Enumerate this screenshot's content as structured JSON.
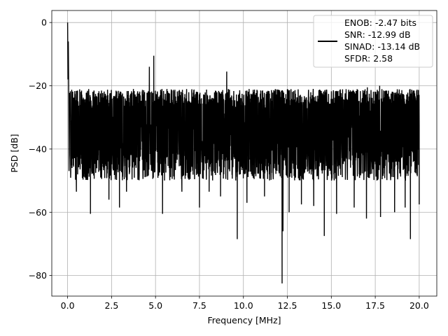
{
  "chart_data": {
    "type": "line",
    "xlabel": "Frequency [MHz]",
    "ylabel": "PSD [dB]",
    "xlim": [
      -0.9,
      21.0
    ],
    "ylim": [
      -86.5,
      3.8
    ],
    "xticks": [
      0.0,
      2.5,
      5.0,
      7.5,
      10.0,
      12.5,
      15.0,
      17.5,
      20.0
    ],
    "xtick_labels": [
      "0.0",
      "2.5",
      "5.0",
      "7.5",
      "10.0",
      "12.5",
      "15.0",
      "17.5",
      "20.0"
    ],
    "yticks": [
      0,
      -20,
      -40,
      -60,
      -80
    ],
    "ytick_labels": [
      "0",
      "−20",
      "−40",
      "−60",
      "−80"
    ],
    "grid": true,
    "legend_position": "top-right",
    "series": [
      {
        "legend_lines": [
          "ENOB: -2.47 bits",
          "SNR: -12.99 dB",
          "SINAD: -13.14 dB",
          "SFDR: 2.58"
        ],
        "color": "#000000",
        "noise_floor_band": [
          -45,
          -24
        ],
        "points": [
          {
            "x": 0.0,
            "y": 0.0
          },
          {
            "x": 0.02,
            "y": -18.0
          },
          {
            "x": 0.04,
            "y": -6.0
          },
          {
            "x": 0.06,
            "y": -20.0
          },
          {
            "x": 0.5,
            "y": -53.5
          },
          {
            "x": 1.3,
            "y": -60.5
          },
          {
            "x": 1.6,
            "y": -46.5
          },
          {
            "x": 2.35,
            "y": -56.0
          },
          {
            "x": 2.95,
            "y": -58.5
          },
          {
            "x": 3.35,
            "y": -53.5
          },
          {
            "x": 4.65,
            "y": -14.0
          },
          {
            "x": 4.9,
            "y": -10.5
          },
          {
            "x": 5.05,
            "y": -25.0
          },
          {
            "x": 5.4,
            "y": -60.5
          },
          {
            "x": 6.5,
            "y": -53.5
          },
          {
            "x": 7.5,
            "y": -58.5
          },
          {
            "x": 8.05,
            "y": -53.5
          },
          {
            "x": 8.7,
            "y": -55.0
          },
          {
            "x": 9.05,
            "y": -15.5
          },
          {
            "x": 9.65,
            "y": -68.5
          },
          {
            "x": 10.2,
            "y": -57.0
          },
          {
            "x": 11.2,
            "y": -55.0
          },
          {
            "x": 12.2,
            "y": -82.5
          },
          {
            "x": 12.25,
            "y": -66.0
          },
          {
            "x": 12.6,
            "y": -60.0
          },
          {
            "x": 13.3,
            "y": -57.5
          },
          {
            "x": 14.0,
            "y": -58.0
          },
          {
            "x": 14.6,
            "y": -67.5
          },
          {
            "x": 15.3,
            "y": -60.5
          },
          {
            "x": 16.3,
            "y": -58.5
          },
          {
            "x": 17.0,
            "y": -62.0
          },
          {
            "x": 17.05,
            "y": -20.5
          },
          {
            "x": 17.75,
            "y": -20.0
          },
          {
            "x": 17.8,
            "y": -61.5
          },
          {
            "x": 18.6,
            "y": -60.0
          },
          {
            "x": 19.2,
            "y": -58.5
          },
          {
            "x": 19.5,
            "y": -68.5
          },
          {
            "x": 20.0,
            "y": -57.5
          }
        ]
      }
    ]
  }
}
